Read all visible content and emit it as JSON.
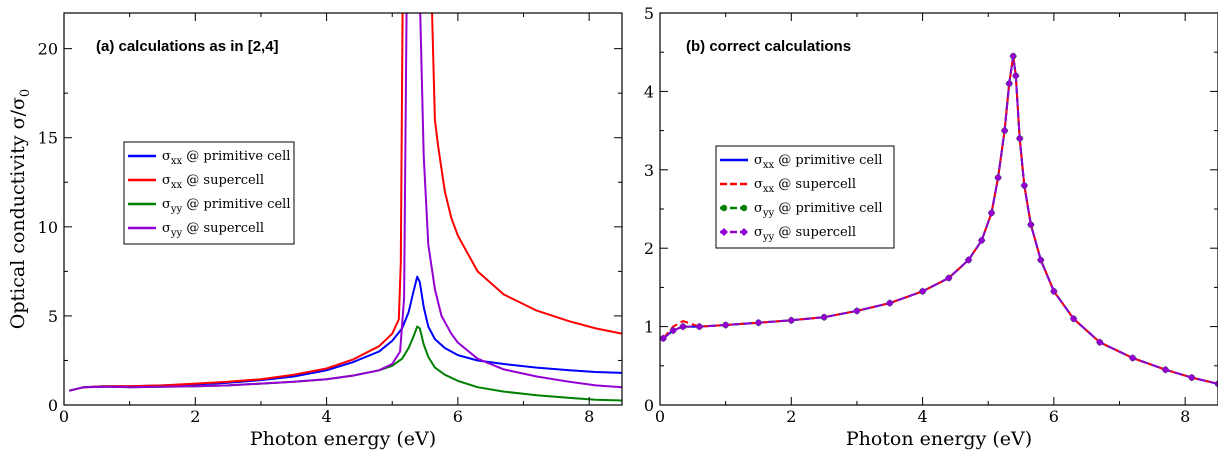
{
  "chart_data": [
    {
      "type": "line",
      "title": "(a) calculations as in [2,4]",
      "xlabel": "Photon energy (eV)",
      "ylabel": "Optical conductivity σ/σ0",
      "xlim": [
        0,
        8.5
      ],
      "ylim": [
        0,
        22
      ],
      "x_ticks": [
        0,
        2,
        4,
        6,
        8
      ],
      "y_ticks": [
        0,
        5,
        10,
        15,
        20
      ],
      "grid": false,
      "legend_position": "middle-left",
      "series": [
        {
          "name": "σxx @ primitive cell",
          "color": "#0000ff",
          "style": "solid",
          "x": [
            0.08,
            0.3,
            0.6,
            1.0,
            1.5,
            2.0,
            2.5,
            3.0,
            3.5,
            4.0,
            4.4,
            4.8,
            5.0,
            5.15,
            5.25,
            5.32,
            5.38,
            5.42,
            5.48,
            5.55,
            5.65,
            5.8,
            6.0,
            6.3,
            6.7,
            7.2,
            7.7,
            8.1,
            8.5
          ],
          "y": [
            0.8,
            1.0,
            1.05,
            1.05,
            1.1,
            1.15,
            1.25,
            1.4,
            1.6,
            1.95,
            2.4,
            3.0,
            3.6,
            4.3,
            5.2,
            6.3,
            7.2,
            6.9,
            5.5,
            4.4,
            3.7,
            3.2,
            2.8,
            2.5,
            2.3,
            2.1,
            1.95,
            1.85,
            1.8
          ]
        },
        {
          "name": "σxx @ supercell",
          "color": "#ff0000",
          "style": "solid",
          "x": [
            0.08,
            0.3,
            0.6,
            1.0,
            1.5,
            2.0,
            2.5,
            3.0,
            3.5,
            4.0,
            4.4,
            4.8,
            5.0,
            5.1,
            5.13,
            5.16,
            5.6,
            5.65,
            5.7,
            5.8,
            5.9,
            6.0,
            6.3,
            6.7,
            7.2,
            7.7,
            8.1,
            8.5
          ],
          "y": [
            0.8,
            1.0,
            1.05,
            1.05,
            1.1,
            1.2,
            1.3,
            1.45,
            1.7,
            2.05,
            2.55,
            3.3,
            4.0,
            4.8,
            8.0,
            23.0,
            23.0,
            16.0,
            14.5,
            12.0,
            10.5,
            9.5,
            7.5,
            6.2,
            5.3,
            4.7,
            4.3,
            4.0
          ]
        },
        {
          "name": "σyy @ primitive cell",
          "color": "#008000",
          "style": "solid",
          "x": [
            0.08,
            0.3,
            0.6,
            1.0,
            1.5,
            2.0,
            2.5,
            3.0,
            3.5,
            4.0,
            4.4,
            4.8,
            5.0,
            5.15,
            5.25,
            5.32,
            5.38,
            5.42,
            5.48,
            5.55,
            5.65,
            5.8,
            6.0,
            6.3,
            6.7,
            7.2,
            7.7,
            8.1,
            8.5
          ],
          "y": [
            0.8,
            1.0,
            1.02,
            1.0,
            1.02,
            1.05,
            1.1,
            1.2,
            1.3,
            1.45,
            1.65,
            1.95,
            2.2,
            2.6,
            3.2,
            3.8,
            4.4,
            4.3,
            3.4,
            2.7,
            2.1,
            1.7,
            1.35,
            1.0,
            0.75,
            0.55,
            0.4,
            0.3,
            0.25
          ]
        },
        {
          "name": "σyy @ supercell",
          "color": "#9400d3",
          "style": "solid",
          "x": [
            0.08,
            0.3,
            0.6,
            1.0,
            1.5,
            2.0,
            2.5,
            3.0,
            3.5,
            4.0,
            4.4,
            4.8,
            5.0,
            5.12,
            5.18,
            5.22,
            5.42,
            5.48,
            5.55,
            5.65,
            5.75,
            5.9,
            6.0,
            6.3,
            6.7,
            7.2,
            7.7,
            8.1,
            8.5
          ],
          "y": [
            0.8,
            1.0,
            1.02,
            1.0,
            1.02,
            1.05,
            1.1,
            1.2,
            1.3,
            1.45,
            1.65,
            1.95,
            2.3,
            3.0,
            6.0,
            23.0,
            23.0,
            14.0,
            9.0,
            6.5,
            5.0,
            4.0,
            3.5,
            2.6,
            2.0,
            1.6,
            1.3,
            1.1,
            1.0
          ]
        }
      ]
    },
    {
      "type": "line",
      "title": "(b) correct calculations",
      "xlabel": "Photon energy (eV)",
      "ylabel": "",
      "xlim": [
        0,
        8.5
      ],
      "ylim": [
        0,
        5
      ],
      "x_ticks": [
        0,
        2,
        4,
        6,
        8
      ],
      "y_ticks": [
        0,
        1,
        2,
        3,
        4,
        5
      ],
      "grid": false,
      "legend_position": "middle-left",
      "series": [
        {
          "name": "σxx @ primitive cell",
          "color": "#0000ff",
          "style": "solid",
          "marker": "none",
          "x": [
            0.05,
            0.2,
            0.35,
            0.6,
            1.0,
            1.5,
            2.0,
            2.5,
            3.0,
            3.5,
            4.0,
            4.4,
            4.7,
            4.9,
            5.05,
            5.15,
            5.25,
            5.32,
            5.38,
            5.42,
            5.48,
            5.55,
            5.65,
            5.8,
            6.0,
            6.3,
            6.7,
            7.2,
            7.7,
            8.1,
            8.5
          ],
          "y": [
            0.85,
            0.95,
            1.0,
            1.0,
            1.02,
            1.05,
            1.08,
            1.12,
            1.2,
            1.3,
            1.45,
            1.62,
            1.85,
            2.1,
            2.45,
            2.9,
            3.5,
            4.1,
            4.45,
            4.2,
            3.4,
            2.8,
            2.3,
            1.85,
            1.45,
            1.1,
            0.8,
            0.6,
            0.45,
            0.35,
            0.27
          ]
        },
        {
          "name": "σxx @ supercell",
          "color": "#ff0000",
          "style": "dashed",
          "marker": "none",
          "x": [
            0.05,
            0.2,
            0.35,
            0.6,
            1.0,
            1.5,
            2.0,
            2.5,
            3.0,
            3.5,
            4.0,
            4.4,
            4.7,
            4.9,
            5.05,
            5.15,
            5.25,
            5.32,
            5.38,
            5.42,
            5.48,
            5.55,
            5.65,
            5.8,
            6.0,
            6.3,
            6.7,
            7.2,
            7.7,
            8.1,
            8.5
          ],
          "y": [
            0.85,
            1.0,
            1.07,
            1.0,
            1.02,
            1.05,
            1.08,
            1.12,
            1.2,
            1.3,
            1.45,
            1.62,
            1.85,
            2.1,
            2.45,
            2.9,
            3.5,
            4.1,
            4.45,
            4.2,
            3.4,
            2.8,
            2.3,
            1.85,
            1.45,
            1.1,
            0.8,
            0.6,
            0.45,
            0.35,
            0.27
          ]
        },
        {
          "name": "σyy @ primitive cell",
          "color": "#008000",
          "style": "dashed",
          "marker": "circle",
          "x": [
            0.05,
            0.2,
            0.35,
            0.6,
            1.0,
            1.5,
            2.0,
            2.5,
            3.0,
            3.5,
            4.0,
            4.4,
            4.7,
            4.9,
            5.05,
            5.15,
            5.25,
            5.32,
            5.38,
            5.42,
            5.48,
            5.55,
            5.65,
            5.8,
            6.0,
            6.3,
            6.7,
            7.2,
            7.7,
            8.1,
            8.5
          ],
          "y": [
            0.85,
            0.95,
            1.0,
            1.0,
            1.02,
            1.05,
            1.08,
            1.12,
            1.2,
            1.3,
            1.45,
            1.62,
            1.85,
            2.1,
            2.45,
            2.9,
            3.5,
            4.1,
            4.45,
            4.2,
            3.4,
            2.8,
            2.3,
            1.85,
            1.45,
            1.1,
            0.8,
            0.6,
            0.45,
            0.35,
            0.27
          ]
        },
        {
          "name": "σyy @ supercell",
          "color": "#9400d3",
          "style": "dashed",
          "marker": "diamond",
          "x": [
            0.05,
            0.2,
            0.35,
            0.6,
            1.0,
            1.5,
            2.0,
            2.5,
            3.0,
            3.5,
            4.0,
            4.4,
            4.7,
            4.9,
            5.05,
            5.15,
            5.25,
            5.32,
            5.38,
            5.42,
            5.48,
            5.55,
            5.65,
            5.8,
            6.0,
            6.3,
            6.7,
            7.2,
            7.7,
            8.1,
            8.5
          ],
          "y": [
            0.85,
            0.95,
            1.0,
            1.0,
            1.02,
            1.05,
            1.08,
            1.12,
            1.2,
            1.3,
            1.45,
            1.62,
            1.85,
            2.1,
            2.45,
            2.9,
            3.5,
            4.1,
            4.45,
            4.2,
            3.4,
            2.8,
            2.3,
            1.85,
            1.45,
            1.1,
            0.8,
            0.6,
            0.45,
            0.35,
            0.27
          ]
        }
      ]
    }
  ]
}
